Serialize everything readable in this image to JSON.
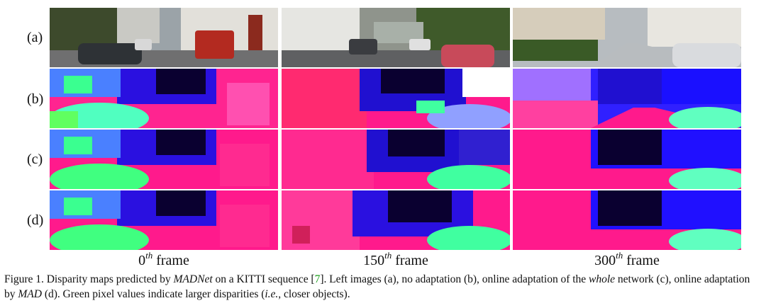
{
  "row_labels": [
    "(a)",
    "(b)",
    "(c)",
    "(d)"
  ],
  "frames": [
    {
      "base": "0",
      "sup": "th",
      "word": "frame"
    },
    {
      "base": "150",
      "sup": "th",
      "word": "frame"
    },
    {
      "base": "300",
      "sup": "th",
      "word": "frame"
    }
  ],
  "caption": {
    "t1": "Figure 1. Disparity maps predicted by ",
    "i1": "MADNet",
    "t2": " on a KITTI sequence [",
    "cite": "7",
    "t3": "]. Left images (a), no adaptation (b), online adaptation of the ",
    "i2": "whole",
    "t4": " network (c), online adaptation by ",
    "i3": "MAD",
    "t5": " (d). Green pixel values indicate larger disparities (",
    "i4": "i.e.",
    "t6": ", closer objects)."
  },
  "colors": {
    "magenta": "#ff1a8c",
    "blue": "#1a1aff",
    "dark": "#0a0030",
    "green": "#30ff80",
    "cite_green": "#1a9e1a"
  }
}
